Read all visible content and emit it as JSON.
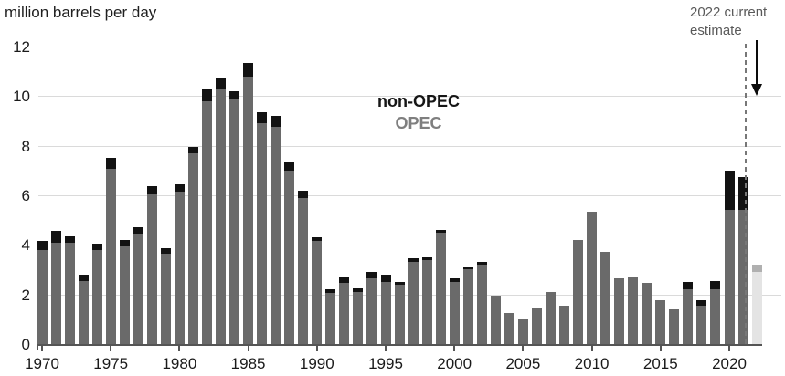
{
  "unit_label": "million barrels per day",
  "legend": {
    "non_opec": "non-OPEC",
    "opec": "OPEC"
  },
  "annotation": {
    "line1": "2022 current",
    "line2": "estimate"
  },
  "colors": {
    "opec_bar": "#6a6a6a",
    "non_opec_bar": "#121212",
    "estimate_body": "#e4e4e4",
    "estimate_cap": "#b0b0b0",
    "gridline": "#dadada",
    "axis": "#555555",
    "legend_opec_text": "#7f7f7f",
    "annotation_text": "#595959",
    "dashed_line": "#777777"
  },
  "y_axis": {
    "tick_labels": [
      "0",
      "2",
      "4",
      "6",
      "8",
      "10",
      "12"
    ],
    "tick_values": [
      0,
      2,
      4,
      6,
      8,
      10,
      12
    ]
  },
  "x_axis": {
    "tick_years": [
      1970,
      1975,
      1980,
      1985,
      1990,
      1995,
      2000,
      2005,
      2010,
      2015,
      2020
    ]
  },
  "chart_data": {
    "type": "bar",
    "stacked": true,
    "title": "",
    "ylabel": "million barrels per day",
    "xlabel": "",
    "ylim": [
      0,
      12.4
    ],
    "grid": true,
    "legend_position": "center-top",
    "x": [
      1970,
      1971,
      1972,
      1973,
      1974,
      1975,
      1976,
      1977,
      1978,
      1979,
      1980,
      1981,
      1982,
      1983,
      1984,
      1985,
      1986,
      1987,
      1988,
      1989,
      1990,
      1991,
      1992,
      1993,
      1994,
      1995,
      1996,
      1997,
      1998,
      1999,
      2000,
      2001,
      2002,
      2003,
      2004,
      2005,
      2006,
      2007,
      2008,
      2009,
      2010,
      2011,
      2012,
      2013,
      2014,
      2015,
      2016,
      2017,
      2018,
      2019,
      2020,
      2021,
      2022
    ],
    "series": [
      {
        "name": "OPEC",
        "values": [
          3.8,
          4.1,
          4.1,
          2.55,
          3.8,
          7.05,
          3.95,
          4.45,
          6.05,
          3.65,
          6.15,
          7.7,
          9.8,
          10.3,
          9.85,
          10.8,
          8.9,
          8.75,
          7.0,
          5.9,
          4.15,
          2.05,
          2.45,
          2.1,
          2.65,
          2.5,
          2.4,
          3.3,
          3.4,
          4.5,
          2.5,
          3.0,
          3.2,
          1.95,
          1.25,
          1.0,
          1.45,
          2.1,
          1.55,
          4.2,
          5.35,
          3.7,
          2.65,
          2.7,
          2.45,
          1.75,
          1.4,
          2.2,
          1.55,
          2.2,
          5.4,
          5.4,
          2.9
        ]
      },
      {
        "name": "non-OPEC",
        "values": [
          0.35,
          0.45,
          0.25,
          0.25,
          0.25,
          0.45,
          0.25,
          0.25,
          0.3,
          0.2,
          0.3,
          0.25,
          0.5,
          0.45,
          0.35,
          0.55,
          0.45,
          0.45,
          0.35,
          0.3,
          0.15,
          0.15,
          0.25,
          0.15,
          0.25,
          0.3,
          0.1,
          0.15,
          0.1,
          0.1,
          0.15,
          0.1,
          0.1,
          0,
          0,
          0,
          0,
          0,
          0,
          0,
          0,
          0,
          0,
          0,
          0,
          0,
          0,
          0.3,
          0.2,
          0.35,
          1.6,
          1.35,
          0.3
        ]
      }
    ],
    "estimate_year": 2022,
    "estimate_note": "2022 shown as lighter bar: current estimate"
  }
}
